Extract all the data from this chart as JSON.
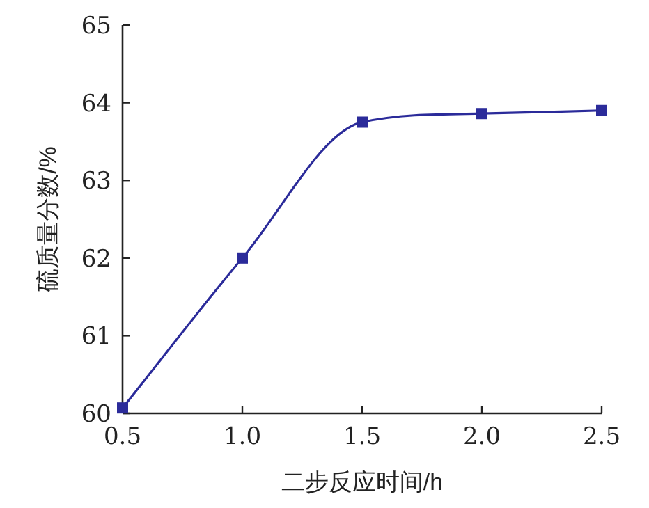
{
  "chart_data": {
    "type": "line",
    "xlabel": "二步反应时间/h",
    "ylabel": "硫质量分数/%",
    "x": [
      0.5,
      1.0,
      1.5,
      2.0,
      2.5
    ],
    "series": [
      {
        "color": "#2b2b9a",
        "values": [
          60.07,
          62.0,
          63.75,
          63.86,
          63.9
        ]
      }
    ],
    "xlim": [
      0.5,
      2.5
    ],
    "xticks": [
      {
        "value": 0.5,
        "label": "0.5"
      },
      {
        "value": 1.0,
        "label": "1.0"
      },
      {
        "value": 1.5,
        "label": "1.5"
      },
      {
        "value": 2.0,
        "label": "2.0"
      },
      {
        "value": 2.5,
        "label": "2.5"
      }
    ],
    "ylim": [
      60,
      65
    ],
    "yticks": [
      60,
      61,
      62,
      63,
      64,
      65
    ],
    "marker": "square",
    "line_style": "solid",
    "grid": false
  }
}
